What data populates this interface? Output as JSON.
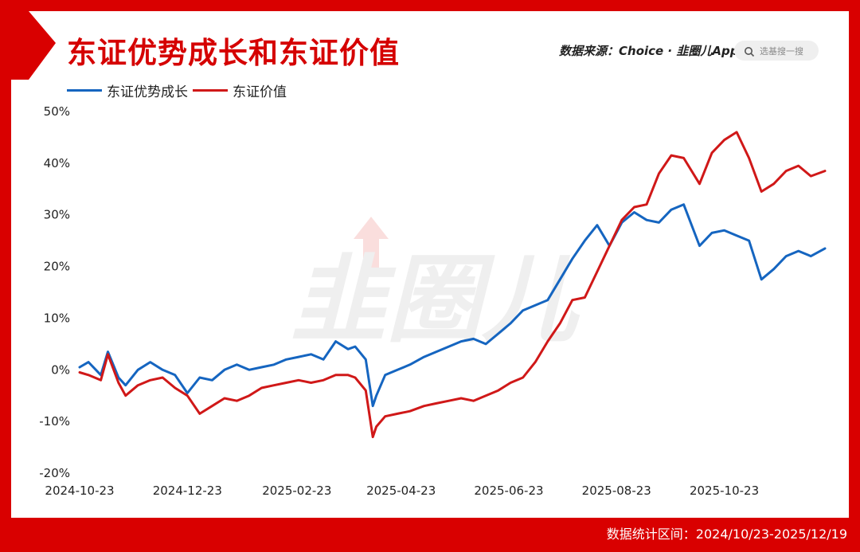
{
  "header": {
    "title": "东证优势成长和东证价值",
    "source": "数据来源：Choice · 韭圈儿App",
    "search_placeholder": "选基搜一搜"
  },
  "footer": {
    "range_text": "数据统计区间：2024/10/23-2025/12/19"
  },
  "watermark": "韭圈儿",
  "colors": {
    "background": "#d90000",
    "growth": "#1565c0",
    "value": "#d01818"
  },
  "chart_data": {
    "type": "line",
    "ylim": [
      -20,
      50
    ],
    "yticks": [
      "50%",
      "40%",
      "30%",
      "20%",
      "10%",
      "0%",
      "-10%",
      "-20%"
    ],
    "ytick_values": [
      50,
      40,
      30,
      20,
      10,
      0,
      -10,
      -20
    ],
    "xticks": [
      "2024-10-23",
      "2024-12-23",
      "2025-02-23",
      "2025-04-23",
      "2025-06-23",
      "2025-08-23",
      "2025-10-23"
    ],
    "x_start": "2024-10-23",
    "x_end": "2025-12-19",
    "x": [
      "2024-10-23",
      "2024-10-28",
      "2024-11-04",
      "2024-11-08",
      "2024-11-14",
      "2024-11-18",
      "2024-11-25",
      "2024-12-02",
      "2024-12-09",
      "2024-12-16",
      "2024-12-23",
      "2024-12-30",
      "2025-01-06",
      "2025-01-13",
      "2025-01-20",
      "2025-01-27",
      "2025-02-03",
      "2025-02-10",
      "2025-02-17",
      "2025-02-24",
      "2025-03-03",
      "2025-03-10",
      "2025-03-17",
      "2025-03-24",
      "2025-03-28",
      "2025-04-03",
      "2025-04-07",
      "2025-04-09",
      "2025-04-14",
      "2025-04-21",
      "2025-04-28",
      "2025-05-06",
      "2025-05-13",
      "2025-05-20",
      "2025-05-27",
      "2025-06-03",
      "2025-06-10",
      "2025-06-17",
      "2025-06-24",
      "2025-07-01",
      "2025-07-08",
      "2025-07-15",
      "2025-07-22",
      "2025-07-29",
      "2025-08-05",
      "2025-08-12",
      "2025-08-19",
      "2025-08-26",
      "2025-09-02",
      "2025-09-09",
      "2025-09-16",
      "2025-09-23",
      "2025-09-30",
      "2025-10-09",
      "2025-10-16",
      "2025-10-23",
      "2025-10-30",
      "2025-11-06",
      "2025-11-13",
      "2025-11-20",
      "2025-11-27",
      "2025-12-04",
      "2025-12-11",
      "2025-12-19"
    ],
    "series": [
      {
        "name": "东证优势成长",
        "values": [
          0.5,
          1.5,
          -1.0,
          3.5,
          -1.5,
          -3.0,
          0.0,
          1.5,
          0.0,
          -1.0,
          -4.5,
          -1.5,
          -2.0,
          0.0,
          1.0,
          0.0,
          0.5,
          1.0,
          2.0,
          2.5,
          3.0,
          2.0,
          5.5,
          4.0,
          4.5,
          2.0,
          -7.0,
          -5.0,
          -1.0,
          0.0,
          1.0,
          2.5,
          3.5,
          4.5,
          5.5,
          6.0,
          5.0,
          7.0,
          9.0,
          11.5,
          12.5,
          13.5,
          17.5,
          21.5,
          25.0,
          28.0,
          24.0,
          28.5,
          30.5,
          29.0,
          28.5,
          31.0,
          32.0,
          24.0,
          26.5,
          27.0,
          26.0,
          25.0,
          17.5,
          19.5,
          22.0,
          23.0,
          22.0,
          23.5
        ]
      },
      {
        "name": "东证价值",
        "values": [
          -0.5,
          -1.0,
          -2.0,
          3.0,
          -2.5,
          -5.0,
          -3.0,
          -2.0,
          -1.5,
          -3.5,
          -5.0,
          -8.5,
          -7.0,
          -5.5,
          -6.0,
          -5.0,
          -3.5,
          -3.0,
          -2.5,
          -2.0,
          -2.5,
          -2.0,
          -1.0,
          -1.0,
          -1.5,
          -4.0,
          -13.0,
          -11.0,
          -9.0,
          -8.5,
          -8.0,
          -7.0,
          -6.5,
          -6.0,
          -5.5,
          -6.0,
          -5.0,
          -4.0,
          -2.5,
          -1.5,
          1.5,
          5.5,
          9.0,
          13.5,
          14.0,
          19.0,
          24.0,
          29.0,
          31.5,
          32.0,
          38.0,
          41.5,
          41.0,
          36.0,
          42.0,
          44.5,
          46.0,
          41.0,
          34.5,
          36.0,
          38.5,
          39.5,
          37.5,
          38.5
        ]
      }
    ]
  }
}
